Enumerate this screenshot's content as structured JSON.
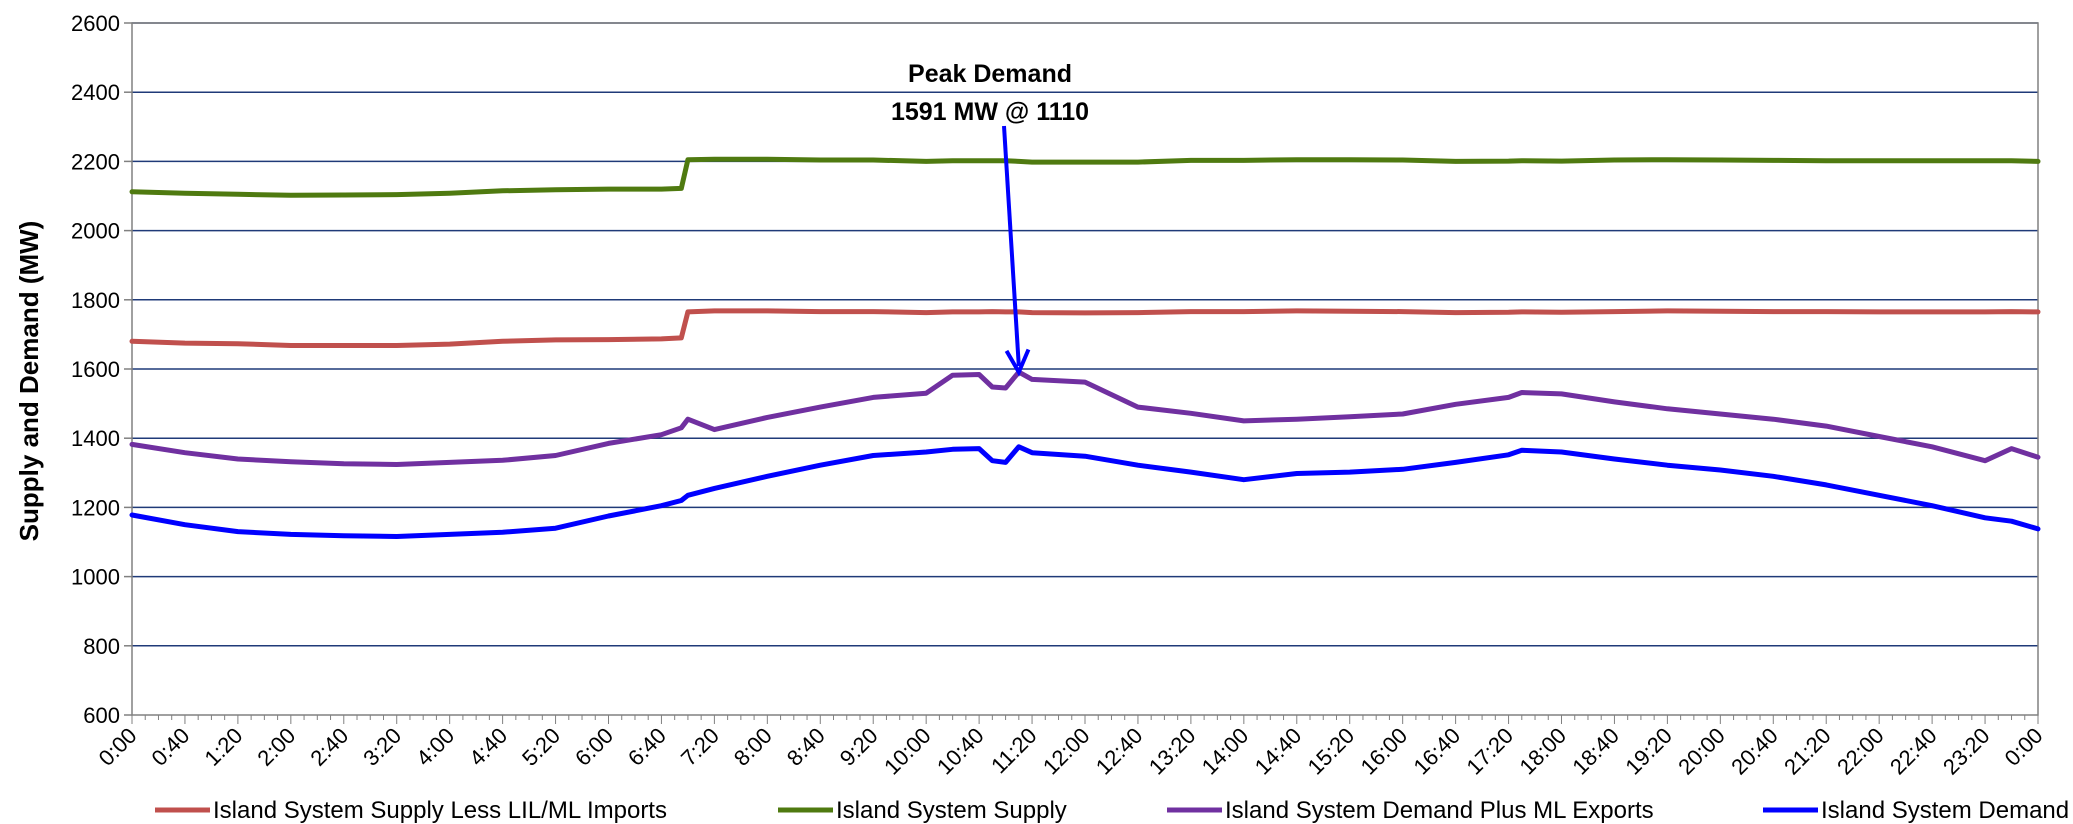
{
  "chart_data": {
    "type": "line",
    "title": "",
    "xlabel": "",
    "ylabel": "Supply and Demand (MW)",
    "ylim": [
      600,
      2600
    ],
    "yticks": [
      600,
      800,
      1000,
      1200,
      1400,
      1600,
      1800,
      2000,
      2200,
      2400,
      2600
    ],
    "xlim_minutes": [
      0,
      1440
    ],
    "xtick_labels": [
      "0:00",
      "0:40",
      "1:20",
      "2:00",
      "2:40",
      "3:20",
      "4:00",
      "4:40",
      "5:20",
      "6:00",
      "6:40",
      "7:20",
      "8:00",
      "8:40",
      "9:20",
      "10:00",
      "10:40",
      "11:20",
      "12:00",
      "12:40",
      "13:20",
      "14:00",
      "14:40",
      "15:20",
      "16:00",
      "16:40",
      "17:20",
      "18:00",
      "18:40",
      "19:20",
      "20:00",
      "20:40",
      "21:20",
      "22:00",
      "22:40",
      "23:20",
      "0:00"
    ],
    "grid": true,
    "legend_position": "bottom",
    "annotation": {
      "line1": "Peak Demand",
      "line2": "1591 MW @ 1110",
      "arrow_target": {
        "time": "11:10",
        "value": 1591
      }
    },
    "x": [
      "0:00",
      "0:40",
      "1:20",
      "2:00",
      "2:40",
      "3:20",
      "4:00",
      "4:40",
      "5:20",
      "6:00",
      "6:40",
      "6:55",
      "7:00",
      "7:20",
      "8:00",
      "8:40",
      "9:20",
      "10:00",
      "10:20",
      "10:40",
      "10:50",
      "11:00",
      "11:10",
      "11:20",
      "12:00",
      "12:40",
      "13:20",
      "14:00",
      "14:40",
      "15:20",
      "16:00",
      "16:40",
      "17:20",
      "17:30",
      "18:00",
      "18:40",
      "19:20",
      "20:00",
      "20:40",
      "21:20",
      "22:00",
      "22:40",
      "23:20",
      "23:40",
      "0:00"
    ],
    "series": [
      {
        "name": "Island System Supply Less LIL/ML Imports",
        "color": "#C0504D",
        "values": [
          1680,
          1675,
          1673,
          1668,
          1668,
          1668,
          1672,
          1680,
          1684,
          1685,
          1687,
          1690,
          1765,
          1768,
          1768,
          1766,
          1766,
          1763,
          1765,
          1765,
          1766,
          1765,
          1765,
          1763,
          1762,
          1763,
          1766,
          1766,
          1768,
          1767,
          1766,
          1763,
          1764,
          1765,
          1764,
          1766,
          1768,
          1767,
          1766,
          1766,
          1765,
          1765,
          1765,
          1766,
          1765
        ]
      },
      {
        "name": "Island System Supply",
        "color": "#4F7A10",
        "values": [
          2112,
          2108,
          2105,
          2102,
          2103,
          2104,
          2108,
          2115,
          2118,
          2120,
          2120,
          2122,
          2205,
          2206,
          2206,
          2204,
          2204,
          2200,
          2202,
          2202,
          2202,
          2202,
          2200,
          2198,
          2198,
          2198,
          2203,
          2203,
          2205,
          2205,
          2204,
          2200,
          2201,
          2202,
          2201,
          2204,
          2205,
          2204,
          2203,
          2202,
          2202,
          2202,
          2202,
          2202,
          2200
        ]
      },
      {
        "name": "Island System Demand Plus ML Exports",
        "color": "#7030A0",
        "values": [
          1382,
          1358,
          1340,
          1332,
          1326,
          1324,
          1330,
          1336,
          1350,
          1385,
          1410,
          1430,
          1455,
          1425,
          1460,
          1490,
          1518,
          1530,
          1582,
          1584,
          1548,
          1545,
          1591,
          1570,
          1562,
          1490,
          1472,
          1450,
          1455,
          1462,
          1470,
          1498,
          1518,
          1532,
          1528,
          1505,
          1485,
          1470,
          1455,
          1435,
          1405,
          1375,
          1335,
          1370,
          1345
        ]
      },
      {
        "name": "Island System Demand",
        "color": "#0000FF",
        "values": [
          1178,
          1150,
          1130,
          1122,
          1118,
          1116,
          1122,
          1128,
          1140,
          1175,
          1205,
          1220,
          1235,
          1255,
          1290,
          1322,
          1350,
          1360,
          1368,
          1370,
          1335,
          1330,
          1375,
          1358,
          1348,
          1322,
          1302,
          1280,
          1298,
          1302,
          1310,
          1330,
          1352,
          1365,
          1360,
          1340,
          1322,
          1308,
          1290,
          1265,
          1235,
          1205,
          1170,
          1160,
          1138
        ]
      }
    ]
  }
}
